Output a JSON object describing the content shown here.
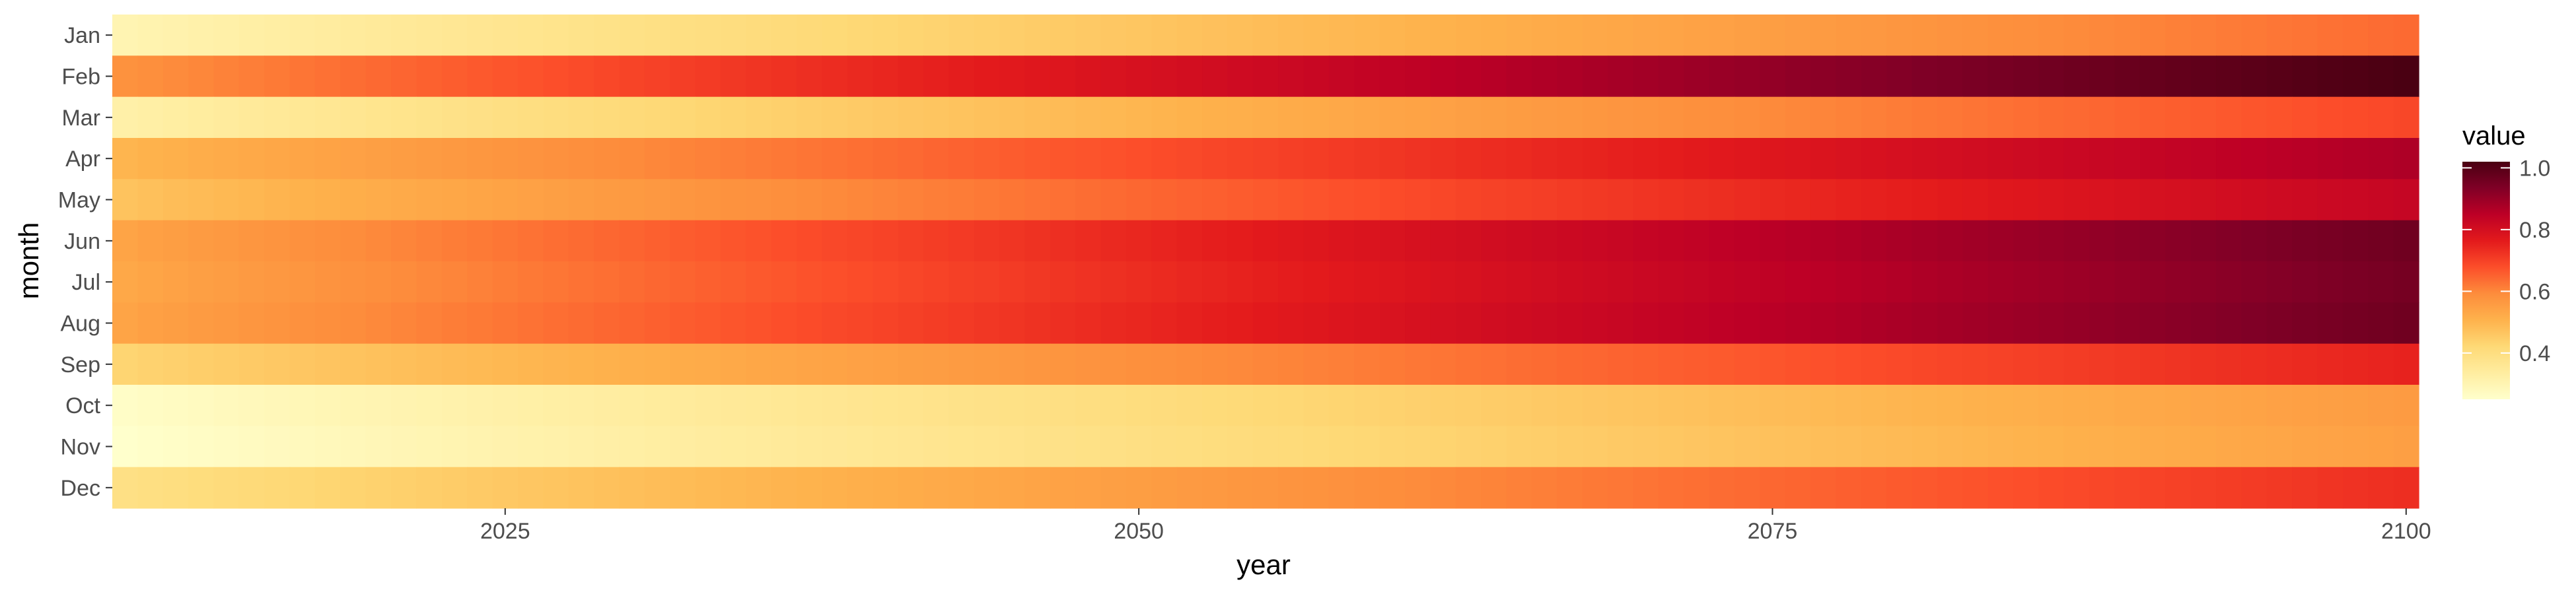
{
  "chart_data": {
    "type": "heatmap",
    "title": "",
    "xlabel": "year",
    "ylabel": "month",
    "x_range": [
      2010,
      2100
    ],
    "x_ticks": [
      2025,
      2050,
      2075,
      2100
    ],
    "months": [
      "Jan",
      "Feb",
      "Mar",
      "Apr",
      "May",
      "Jun",
      "Jul",
      "Aug",
      "Sep",
      "Oct",
      "Nov",
      "Dec"
    ],
    "legend": {
      "title": "value",
      "placement": "right",
      "range": [
        0.25,
        1.02
      ],
      "ticks": [
        0.4,
        0.6,
        0.8,
        1.0
      ],
      "tick_labels": [
        "0.4",
        "0.6",
        "0.8",
        "1.0"
      ]
    },
    "colormap": [
      "#ffffcc",
      "#ffeda0",
      "#fed976",
      "#feb24c",
      "#fd8d3c",
      "#fc4e2a",
      "#e31a1c",
      "#bd0026",
      "#800026",
      "#4a0012"
    ],
    "series": [
      {
        "month": "Jan",
        "start": 0.3,
        "end": 0.64
      },
      {
        "month": "Feb",
        "start": 0.58,
        "end": 1.02
      },
      {
        "month": "Mar",
        "start": 0.32,
        "end": 0.69
      },
      {
        "month": "Apr",
        "start": 0.5,
        "end": 0.87
      },
      {
        "month": "May",
        "start": 0.47,
        "end": 0.83
      },
      {
        "month": "Jun",
        "start": 0.54,
        "end": 0.96
      },
      {
        "month": "Jul",
        "start": 0.53,
        "end": 0.95
      },
      {
        "month": "Aug",
        "start": 0.54,
        "end": 0.96
      },
      {
        "month": "Sep",
        "start": 0.43,
        "end": 0.75
      },
      {
        "month": "Oct",
        "start": 0.26,
        "end": 0.56
      },
      {
        "month": "Nov",
        "start": 0.25,
        "end": 0.55
      },
      {
        "month": "Dec",
        "start": 0.39,
        "end": 0.73
      }
    ],
    "grid": false
  }
}
